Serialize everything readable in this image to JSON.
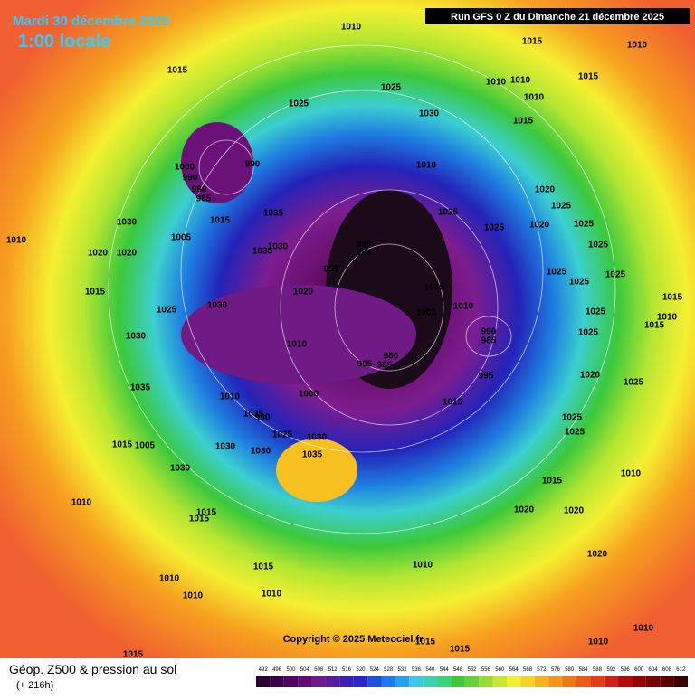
{
  "header": {
    "title": "Mardi 30 décembre 2025",
    "time": "1:00 locale",
    "run": "Run GFS 0 Z du Dimanche 21 décembre 2025"
  },
  "map": {
    "copyright": "Copyright © 2025 Meteociel.fr",
    "isobar_labels": [
      "1010",
      "1015",
      "1010",
      "1015",
      "1025",
      "1010",
      "1010",
      "1015",
      "1025",
      "1010",
      "1030",
      "1015",
      "990",
      "1000",
      "1010",
      "990",
      "980",
      "985",
      "1020",
      "1025",
      "1035",
      "1015",
      "1020",
      "1025",
      "1030",
      "1025",
      "1025",
      "990",
      "985",
      "1030",
      "1005",
      "1010",
      "1025",
      "1035",
      "1020",
      "1020",
      "995",
      "1025",
      "1025",
      "1015",
      "1020",
      "1005",
      "1025",
      "1015",
      "1030",
      "1010",
      "1025",
      "1000",
      "1025",
      "1010",
      "1030",
      "990",
      "985",
      "1015",
      "1010",
      "980",
      "995",
      "985",
      "1025",
      "995",
      "1020",
      "1035",
      "1010",
      "1000",
      "1015",
      "1035",
      "990",
      "1025",
      "1025",
      "1025",
      "1030",
      "1025",
      "1015",
      "1005",
      "1030",
      "1030",
      "1035",
      "1030",
      "1015",
      "1010",
      "1010",
      "1020",
      "1020",
      "1015",
      "1015",
      "1020",
      "1010",
      "1015",
      "1010",
      "1010",
      "1010",
      "1015",
      "1010",
      "1010",
      "1015",
      "1015"
    ]
  },
  "footer": {
    "title": "Géop. Z500 & pression au sol",
    "lead": "(+ 216h)",
    "scale": [
      492,
      496,
      500,
      504,
      508,
      512,
      516,
      520,
      524,
      528,
      532,
      536,
      540,
      544,
      548,
      552,
      556,
      560,
      564,
      568,
      572,
      576,
      580,
      584,
      588,
      592,
      596,
      600,
      604,
      608,
      612
    ]
  }
}
